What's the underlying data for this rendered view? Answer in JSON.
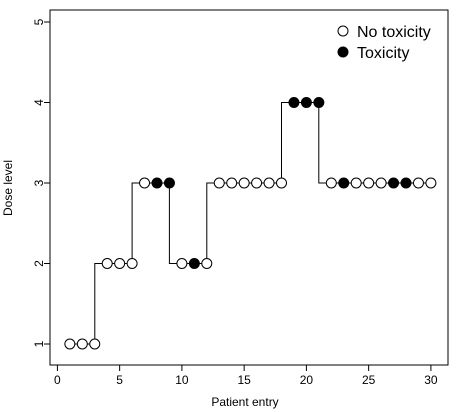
{
  "chart_data": {
    "type": "scatter",
    "title": "",
    "xlabel": "Patient entry",
    "ylabel": "Dose level",
    "xlim": [
      0,
      31.5
    ],
    "ylim": [
      0.9,
      5.2
    ],
    "xticks": [
      0,
      5,
      10,
      15,
      20,
      25,
      30
    ],
    "yticks": [
      1,
      2,
      3,
      4,
      5
    ],
    "grid": false,
    "legend_position": "top-right",
    "step_line": true,
    "series": [
      {
        "name": "No toxicity",
        "marker": "open-circle",
        "points": [
          {
            "x": 1,
            "y": 1
          },
          {
            "x": 2,
            "y": 1
          },
          {
            "x": 3,
            "y": 1
          },
          {
            "x": 4,
            "y": 2
          },
          {
            "x": 5,
            "y": 2
          },
          {
            "x": 6,
            "y": 2
          },
          {
            "x": 7,
            "y": 3
          },
          {
            "x": 10,
            "y": 2
          },
          {
            "x": 12,
            "y": 2
          },
          {
            "x": 13,
            "y": 3
          },
          {
            "x": 14,
            "y": 3
          },
          {
            "x": 15,
            "y": 3
          },
          {
            "x": 16,
            "y": 3
          },
          {
            "x": 17,
            "y": 3
          },
          {
            "x": 18,
            "y": 3
          },
          {
            "x": 22,
            "y": 3
          },
          {
            "x": 24,
            "y": 3
          },
          {
            "x": 25,
            "y": 3
          },
          {
            "x": 26,
            "y": 3
          },
          {
            "x": 29,
            "y": 3
          },
          {
            "x": 30,
            "y": 3
          }
        ]
      },
      {
        "name": "Toxicity",
        "marker": "filled-circle",
        "points": [
          {
            "x": 8,
            "y": 3
          },
          {
            "x": 9,
            "y": 3
          },
          {
            "x": 11,
            "y": 2
          },
          {
            "x": 19,
            "y": 4
          },
          {
            "x": 20,
            "y": 4
          },
          {
            "x": 21,
            "y": 4
          },
          {
            "x": 23,
            "y": 3
          },
          {
            "x": 27,
            "y": 3
          },
          {
            "x": 28,
            "y": 3
          }
        ]
      }
    ],
    "dose_by_patient": [
      1,
      1,
      1,
      2,
      2,
      2,
      3,
      3,
      3,
      2,
      2,
      2,
      3,
      3,
      3,
      3,
      3,
      3,
      4,
      4,
      4,
      3,
      3,
      3,
      3,
      3,
      3,
      3,
      3,
      3
    ]
  }
}
